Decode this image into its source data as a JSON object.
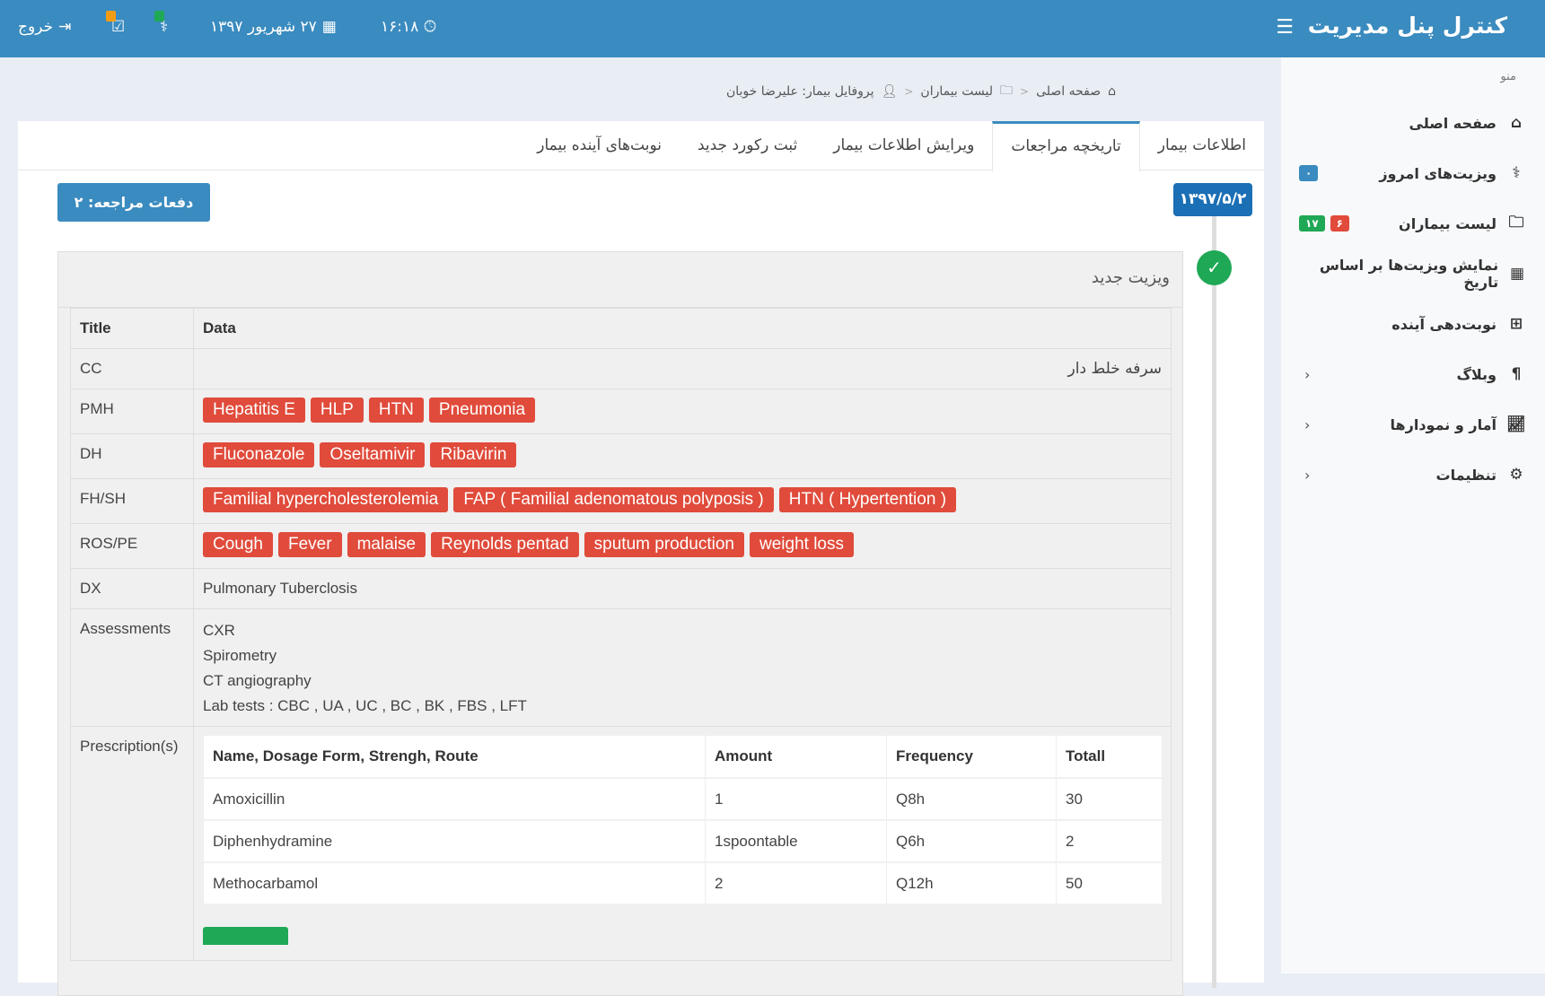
{
  "header": {
    "title": "کنترل پنل مدیریت",
    "time": "۱۶:۱۸",
    "date": "۲۷ شهریور ۱۳۹۷",
    "logout": "خروج",
    "colors": {
      "bar": "#3a8bbf",
      "notif_visit": "#1fa855",
      "notif_appointment": "#f39c12"
    }
  },
  "sidebar": {
    "title": "منو",
    "items": [
      {
        "label": "صفحه اصلی",
        "icon": "home-icon"
      },
      {
        "label": "ویزیت‌های امروز",
        "icon": "stethoscope-icon",
        "badges": [
          "۰"
        ]
      },
      {
        "label": "لیست بیماران",
        "icon": "folder-icon",
        "badges": [
          "۶",
          "۱۷"
        ]
      },
      {
        "label": "نمایش ویزیت‌ها بر اساس تاریخ",
        "icon": "calendar-icon"
      },
      {
        "label": "نوبت‌دهی آینده",
        "icon": "calendar-plus-icon"
      },
      {
        "label": "وبلاگ",
        "icon": "paragraph-icon"
      },
      {
        "label": "آمار و نمودارها",
        "icon": "chart-icon"
      },
      {
        "label": "تنظیمات",
        "icon": "gear-icon"
      }
    ]
  },
  "breadcrumb": [
    "صفحه اصلی",
    "لیست بیماران",
    "پروفایل بیمار: علیرضا خوبان"
  ],
  "tabs": [
    "اطلاعات بیمار",
    "تاریخچه مراجعات",
    "ویرایش اطلاعات بیمار",
    "ثبت رکورد جدید",
    "نوبت‌های آینده بیمار"
  ],
  "active_tab": "تاریخچه مراجعات",
  "visit_count": "دفعات مراجعه: ۲",
  "visit_date": "۱۳۹۷/۵/۲",
  "panel": {
    "title": "ویزیت جدید",
    "headers": [
      "Title",
      "Data"
    ],
    "cc_label": "CC",
    "cc": "سرفه خلط دار",
    "pmh_label": "PMH",
    "pmh": [
      "Hepatitis E",
      "HLP",
      "HTN",
      "Pneumonia"
    ],
    "dh_label": "DH",
    "dh": [
      "Fluconazole",
      "Oseltamivir",
      "Ribavirin"
    ],
    "fhsh_label": "FH/SH",
    "fhsh": [
      "Familial hypercholesterolemia",
      "FAP ( Familial adenomatous polyposis )",
      "HTN ( Hypertention )"
    ],
    "ros_label": "ROS/PE",
    "ros": [
      "Cough",
      "Fever",
      "malaise",
      "Reynolds pentad",
      "sputum production",
      "weight loss"
    ],
    "dx_label": "DX",
    "dx": "Pulmonary Tuberclosis",
    "assess_label": "Assessments",
    "assessments": [
      "CXR",
      "Spirometry",
      "CT angiography",
      "Lab tests : CBC , UA , UC , BC , BK , FBS , LFT"
    ],
    "rx_label": "Prescription(s)",
    "rx_headers": [
      "Name, Dosage Form, Strengh, Route",
      "Amount",
      "Frequency",
      "Totall"
    ],
    "rx": [
      [
        "Amoxicillin",
        "1",
        "Q8h",
        "30"
      ],
      [
        "Diphenhydramine",
        "1spoontable",
        "Q6h",
        "2"
      ],
      [
        "Methocarbamol",
        "2",
        "Q12h",
        "50"
      ]
    ]
  }
}
